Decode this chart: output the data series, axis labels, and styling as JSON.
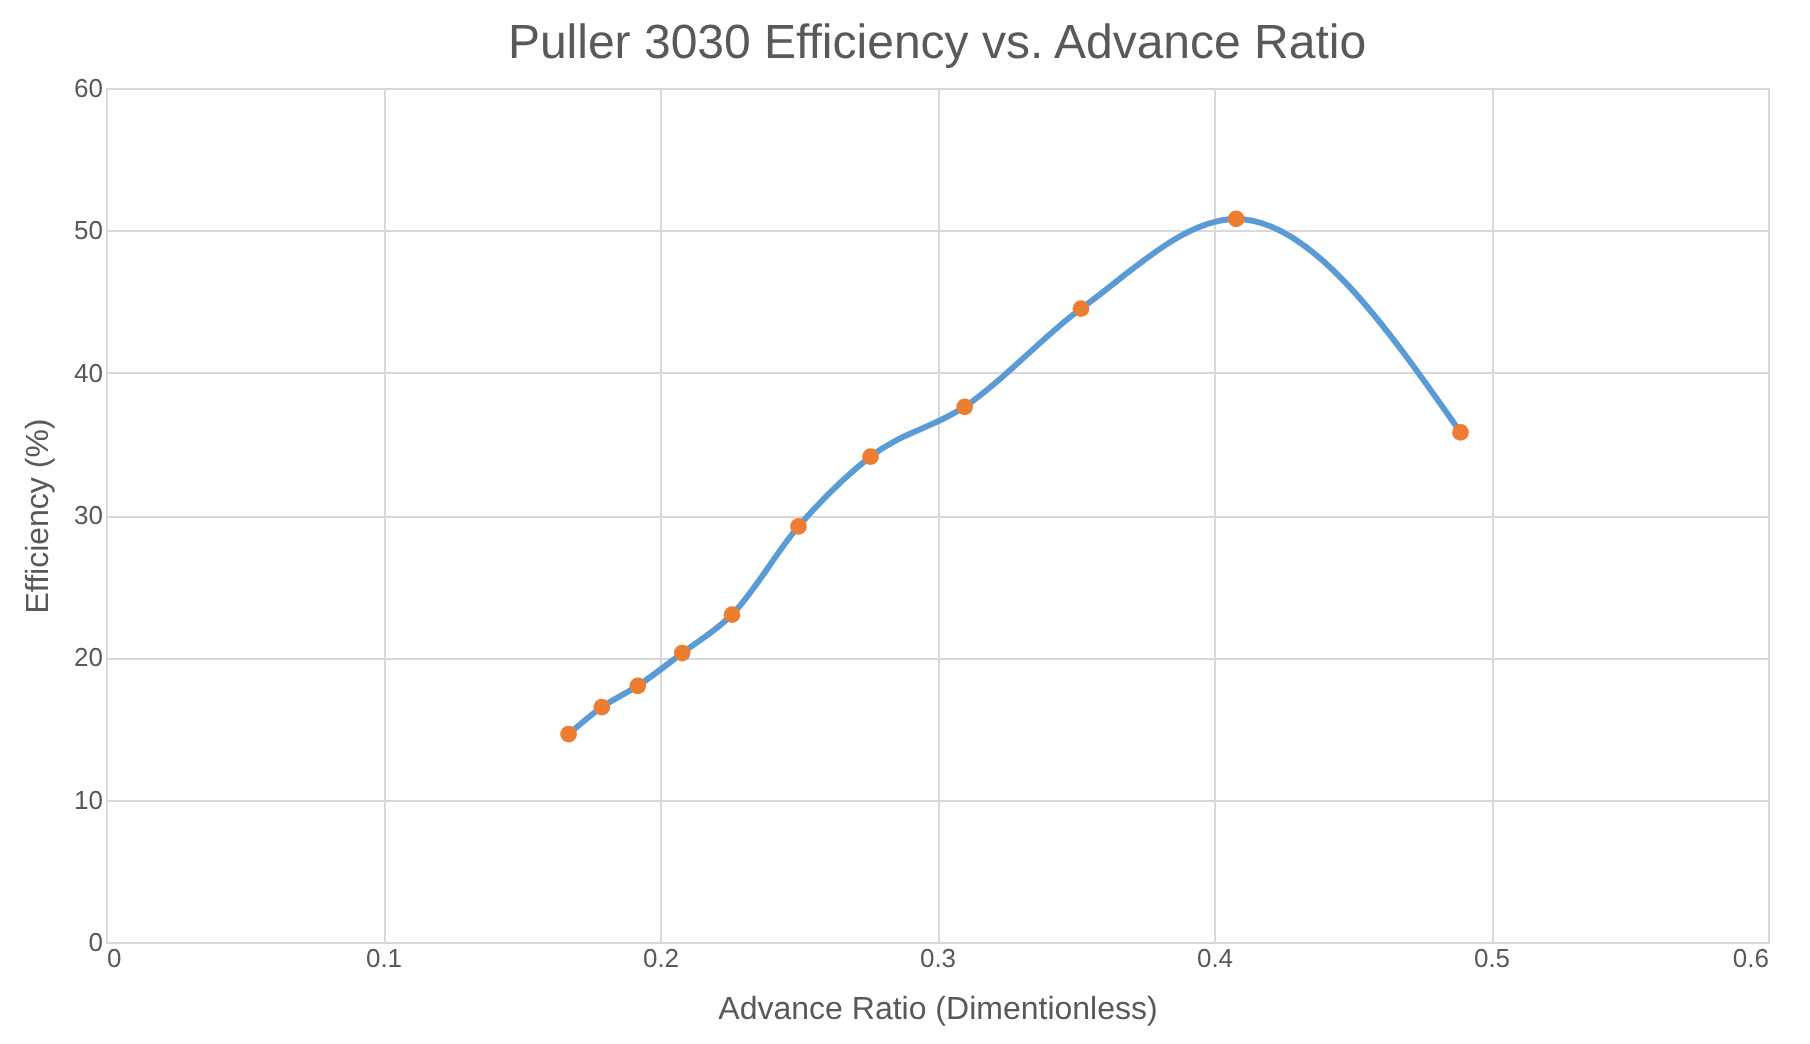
{
  "chart_data": {
    "type": "line",
    "title": "Puller 3030 Efficiency vs. Advance Ratio",
    "xlabel": "Advance Ratio (Dimentionless)",
    "ylabel": "Efficiency (%)",
    "x": [
      0.167,
      0.179,
      0.192,
      0.208,
      0.226,
      0.25,
      0.276,
      0.31,
      0.352,
      0.408,
      0.489
    ],
    "series": [
      {
        "type": "line",
        "color": "#5b9bd5",
        "marker": "none",
        "values": [
          14.6,
          16.5,
          18.0,
          20.3,
          23.0,
          29.2,
          34.1,
          37.6,
          44.5,
          50.8,
          35.8
        ]
      },
      {
        "type": "scatter",
        "color": "#ed7d31",
        "marker": "circle",
        "values": [
          14.6,
          16.5,
          18.0,
          20.3,
          23.0,
          29.2,
          34.1,
          37.6,
          44.5,
          50.8,
          35.8
        ]
      }
    ],
    "xlim": [
      0,
      0.6
    ],
    "xticks": [
      0,
      0.1,
      0.2,
      0.3,
      0.4,
      0.5,
      0.6
    ],
    "ylim": [
      0,
      60
    ],
    "yticks": [
      0,
      10,
      20,
      30,
      40,
      50,
      60
    ],
    "grid": true
  }
}
